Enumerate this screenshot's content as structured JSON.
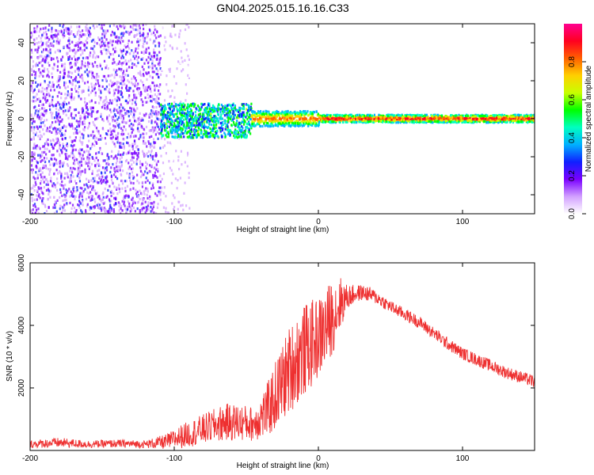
{
  "title": "GN04.2025.015.16.16.C33",
  "chart_data": [
    {
      "type": "heatmap",
      "xlabel": "Height of straight line (km)",
      "ylabel": "Frequency (Hz)",
      "xlim": [
        -200,
        150
      ],
      "ylim": [
        -50,
        50
      ],
      "xticks": [
        -200,
        -100,
        0,
        100
      ],
      "xtick_labels": [
        "-200",
        "-100",
        "0",
        "100"
      ],
      "yticks": [
        -40,
        -20,
        0,
        20,
        40
      ],
      "ytick_labels": [
        "-40",
        "-20",
        "0",
        "20",
        "40"
      ],
      "colorbar": {
        "label": "Normalized spectral amplitude",
        "range": [
          0,
          1
        ],
        "ticks": [
          0,
          0.2,
          0.4,
          0.6,
          0.8
        ],
        "tick_labels": [
          "0.0",
          "0.2",
          "0.4",
          "0.6",
          "0.8"
        ],
        "colors": [
          "#ffffff",
          "#d2a0ff",
          "#7a00ff",
          "#1020ff",
          "#00b0ff",
          "#00ffc0",
          "#00ff00",
          "#c8ff00",
          "#ffd000",
          "#ff6000",
          "#ff0020",
          "#ff0090"
        ]
      },
      "regions": [
        {
          "x": [
            -200,
            -110
          ],
          "f": [
            -50,
            50
          ],
          "amplitude": 0.15,
          "pattern": "noise"
        },
        {
          "x": [
            -110,
            -90
          ],
          "f": [
            -50,
            50
          ],
          "amplitude": 0.05,
          "pattern": "sparse noise"
        },
        {
          "x": [
            -110,
            -47
          ],
          "f": [
            -10,
            8
          ],
          "amplitude": 0.4,
          "pattern": "band"
        },
        {
          "x": [
            -47,
            0
          ],
          "f": [
            -4,
            4
          ],
          "amplitude": 0.85,
          "pattern": "narrow line"
        },
        {
          "x": [
            0,
            150
          ],
          "f": [
            -2,
            2
          ],
          "amplitude": 0.95,
          "pattern": "narrow line at 0 Hz"
        }
      ]
    },
    {
      "type": "line",
      "xlabel": "Height of straight line (km)",
      "ylabel": "SNR (10 * v/v)",
      "xlim": [
        -200,
        150
      ],
      "ylim": [
        0,
        6000
      ],
      "xticks": [
        -200,
        -100,
        0,
        100
      ],
      "xtick_labels": [
        "-200",
        "-100",
        "0",
        "100"
      ],
      "yticks": [
        2000,
        4000,
        6000
      ],
      "ytick_labels": [
        "2000",
        "4000",
        "6000"
      ],
      "color": "#ee3030",
      "series": [
        {
          "x": [
            -200,
            -180,
            -160,
            -140,
            -120,
            -105,
            -95,
            -85,
            -75,
            -65,
            -55,
            -45,
            -35,
            -28,
            -20,
            -12,
            -5,
            0,
            5,
            10,
            15,
            20,
            25,
            30,
            35,
            40,
            50,
            60,
            70,
            80,
            90,
            100,
            110,
            120,
            130,
            140,
            150
          ],
          "y": [
            200,
            250,
            200,
            220,
            200,
            280,
            450,
            600,
            750,
            900,
            900,
            850,
            1300,
            1900,
            2600,
            3100,
            3400,
            3600,
            3900,
            4300,
            4700,
            4900,
            5000,
            5050,
            5000,
            4900,
            4600,
            4350,
            4100,
            3750,
            3400,
            3100,
            2900,
            2700,
            2500,
            2350,
            2200
          ],
          "noise_amplitude": [
            120,
            160,
            120,
            130,
            120,
            250,
            380,
            450,
            520,
            600,
            600,
            550,
            900,
            1200,
            1400,
            1500,
            1400,
            1300,
            1300,
            1200,
            900,
            400,
            300,
            250,
            250,
            220,
            200,
            200,
            200,
            200,
            200,
            200,
            200,
            200,
            200,
            200,
            200
          ]
        }
      ]
    }
  ]
}
